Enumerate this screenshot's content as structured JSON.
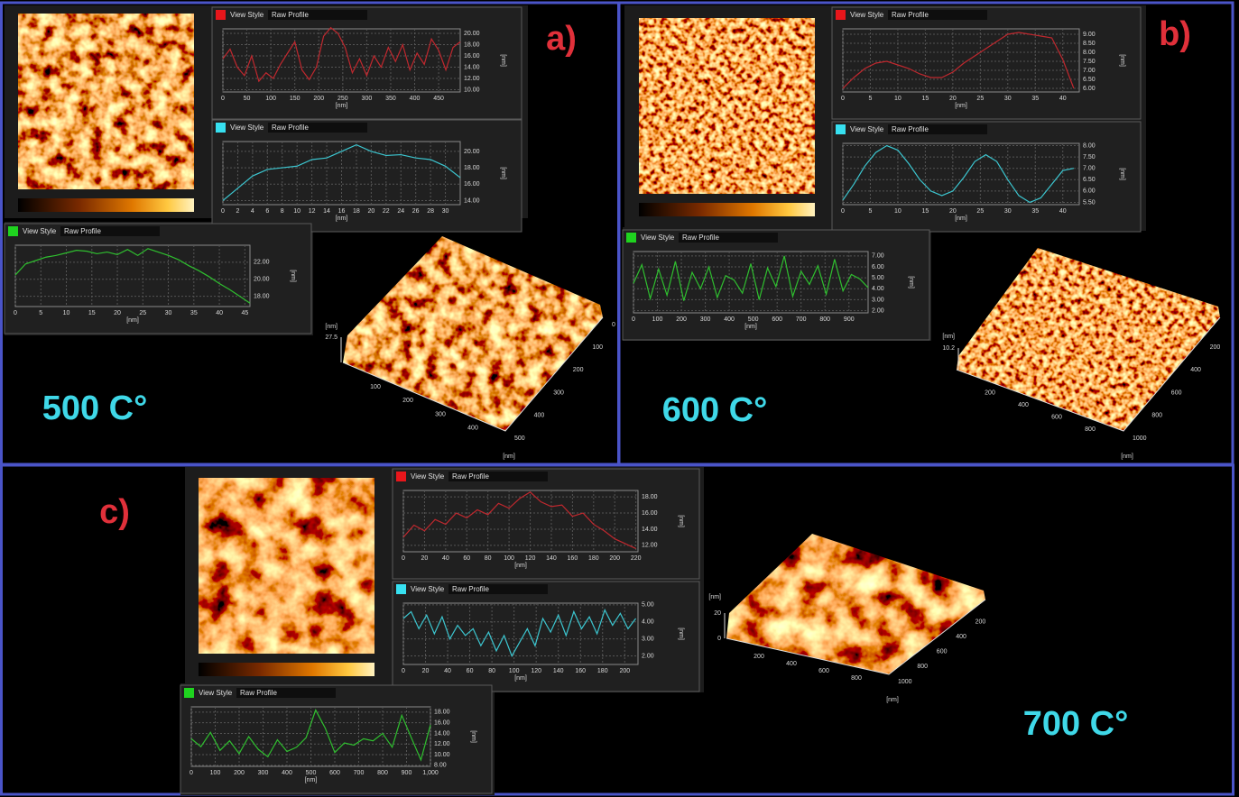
{
  "panels": [
    {
      "label": "a)",
      "temperature": "500 C°",
      "profiles": [
        {
          "header_title": "View Style",
          "header_mode": "Raw Profile",
          "color": "#e8161b",
          "line_color": "#c0282e",
          "x": [
            0,
            15,
            30,
            45,
            60,
            75,
            90,
            105,
            120,
            135,
            150,
            165,
            180,
            195,
            210,
            225,
            240,
            255,
            270,
            285,
            300,
            315,
            330,
            345,
            360,
            375,
            390,
            405,
            420,
            435,
            450,
            465,
            480,
            495
          ],
          "values": [
            15.5,
            17.2,
            14.0,
            12.5,
            16.0,
            11.5,
            13.0,
            12.0,
            14.5,
            16.5,
            18.5,
            13.5,
            11.8,
            14.0,
            19.5,
            21.0,
            20.0,
            17.5,
            13.0,
            15.5,
            12.5,
            16.0,
            14.0,
            17.5,
            15.0,
            18.0,
            13.5,
            16.5,
            14.5,
            19.0,
            17.0,
            13.5,
            17.5,
            18.5
          ],
          "xlim": [
            0,
            495
          ],
          "ylim": [
            9.6,
            20.8
          ],
          "xticks": [
            0,
            50,
            100,
            150,
            200,
            250,
            300,
            350,
            400,
            450
          ],
          "yticks": [
            {
              "value": 10,
              "label": "10.00"
            },
            {
              "value": 12,
              "label": "12.00"
            },
            {
              "value": 14,
              "label": "14.00"
            },
            {
              "value": 16,
              "label": "16.00"
            },
            {
              "value": 18,
              "label": "18.00"
            },
            {
              "value": 20,
              "label": "20.00"
            }
          ],
          "x_unit": "[nm]",
          "y_unit": "[nm]"
        },
        {
          "header_title": "View Style",
          "header_mode": "Raw Profile",
          "color": "#37e0f0",
          "line_color": "#3cc6d0",
          "x": [
            0,
            2,
            4,
            6,
            8,
            10,
            12,
            14,
            16,
            18,
            20,
            22,
            24,
            26,
            28,
            30,
            32
          ],
          "values": [
            14.0,
            15.5,
            17.0,
            17.8,
            18.0,
            18.2,
            19.0,
            19.2,
            20.0,
            20.8,
            20.0,
            19.5,
            19.6,
            19.2,
            19.0,
            18.2,
            16.8
          ],
          "xlim": [
            0,
            32
          ],
          "ylim": [
            13.5,
            21.2
          ],
          "xticks": [
            0,
            2,
            4,
            6,
            8,
            10,
            12,
            14,
            16,
            18,
            20,
            22,
            24,
            26,
            28,
            30
          ],
          "yticks": [
            {
              "value": 14,
              "label": "14.00"
            },
            {
              "value": 16,
              "label": "16.00"
            },
            {
              "value": 18,
              "label": "18.00"
            },
            {
              "value": 20,
              "label": "20.00"
            }
          ],
          "x_unit": "[nm]",
          "y_unit": "[nm]"
        },
        {
          "header_title": "View Style",
          "header_mode": "Raw Profile",
          "color": "#1fd31f",
          "line_color": "#2fbf2f",
          "x": [
            0,
            2,
            4,
            6,
            8,
            10,
            12,
            14,
            16,
            18,
            20,
            22,
            24,
            26,
            28,
            30,
            32,
            34,
            36,
            38,
            40,
            42,
            44,
            46
          ],
          "values": [
            20.5,
            21.8,
            22.2,
            22.6,
            22.8,
            23.1,
            23.4,
            23.3,
            23.0,
            23.2,
            22.9,
            23.5,
            22.8,
            23.6,
            23.2,
            22.8,
            22.3,
            21.6,
            21.0,
            20.3,
            19.5,
            18.8,
            18.0,
            17.2
          ],
          "xlim": [
            0,
            46
          ],
          "ylim": [
            16.8,
            24
          ],
          "xticks": [
            0,
            5,
            10,
            15,
            20,
            25,
            30,
            35,
            40,
            45
          ],
          "yticks": [
            {
              "value": 18,
              "label": "18.00"
            },
            {
              "value": 20,
              "label": "20.00"
            },
            {
              "value": 22,
              "label": "22.00"
            }
          ],
          "x_unit": "[nm]",
          "y_unit": "[nm]"
        }
      ],
      "surface": {
        "z_unit": "[nm]",
        "z_ticks": [
          27.5
        ],
        "x_ticks": [
          100,
          200,
          300,
          400
        ],
        "y_ticks": [
          0,
          100,
          200,
          300,
          400,
          500
        ],
        "y_unit": "[nm]"
      }
    },
    {
      "label": "b)",
      "temperature": "600 C°",
      "profiles": [
        {
          "header_title": "View Style",
          "header_mode": "Raw Profile",
          "color": "#e8161b",
          "line_color": "#c0282e",
          "x": [
            0,
            2,
            4,
            6,
            8,
            10,
            12,
            14,
            16,
            18,
            20,
            22,
            24,
            26,
            28,
            30,
            32,
            34,
            36,
            38,
            40,
            42
          ],
          "values": [
            6.0,
            6.6,
            7.1,
            7.4,
            7.5,
            7.3,
            7.1,
            6.8,
            6.6,
            6.6,
            6.9,
            7.4,
            7.8,
            8.2,
            8.6,
            9.0,
            9.1,
            9.0,
            8.9,
            8.8,
            7.6,
            6.0
          ],
          "xlim": [
            0,
            43
          ],
          "ylim": [
            5.8,
            9.3
          ],
          "xticks": [
            0,
            5,
            10,
            15,
            20,
            25,
            30,
            35,
            40
          ],
          "yticks": [
            {
              "value": 6,
              "label": "6.00"
            },
            {
              "value": 6.5,
              "label": "6.50"
            },
            {
              "value": 7,
              "label": "7.00"
            },
            {
              "value": 7.5,
              "label": "7.50"
            },
            {
              "value": 8,
              "label": "8.00"
            },
            {
              "value": 8.5,
              "label": "8.50"
            },
            {
              "value": 9,
              "label": "9.00"
            }
          ],
          "x_unit": "[nm]",
          "y_unit": "[nm]"
        },
        {
          "header_title": "View Style",
          "header_mode": "Raw Profile",
          "color": "#37e0f0",
          "line_color": "#3cc6d0",
          "x": [
            0,
            2,
            4,
            6,
            8,
            10,
            12,
            14,
            16,
            18,
            20,
            22,
            24,
            26,
            28,
            30,
            32,
            34,
            36,
            38,
            40,
            42
          ],
          "values": [
            5.6,
            6.3,
            7.1,
            7.7,
            8.0,
            7.8,
            7.2,
            6.5,
            6.0,
            5.8,
            6.0,
            6.6,
            7.3,
            7.6,
            7.3,
            6.5,
            5.8,
            5.5,
            5.7,
            6.3,
            6.9,
            7.0
          ],
          "xlim": [
            0,
            43
          ],
          "ylim": [
            5.4,
            8.1
          ],
          "xticks": [
            0,
            5,
            10,
            15,
            20,
            25,
            30,
            35,
            40
          ],
          "yticks": [
            {
              "value": 5.5,
              "label": "5.50"
            },
            {
              "value": 6,
              "label": "6.00"
            },
            {
              "value": 6.5,
              "label": "6.50"
            },
            {
              "value": 7,
              "label": "7.00"
            },
            {
              "value": 7.5,
              "label": "7.50"
            },
            {
              "value": 8,
              "label": "8.00"
            }
          ],
          "x_unit": "[nm]",
          "y_unit": "[nm]"
        },
        {
          "header_title": "View Style",
          "header_mode": "Raw Profile",
          "color": "#1fd31f",
          "line_color": "#2fbf2f",
          "x": [
            0,
            35,
            70,
            105,
            140,
            175,
            210,
            245,
            280,
            315,
            350,
            385,
            420,
            455,
            490,
            525,
            560,
            595,
            630,
            665,
            700,
            735,
            770,
            805,
            840,
            875,
            910,
            945,
            980
          ],
          "values": [
            4.5,
            6.2,
            3.1,
            5.8,
            3.4,
            6.5,
            2.9,
            5.5,
            4.0,
            6.0,
            3.2,
            5.2,
            4.8,
            3.6,
            6.3,
            3.0,
            5.9,
            4.2,
            7.0,
            3.3,
            5.6,
            4.4,
            6.1,
            3.5,
            6.7,
            3.8,
            5.3,
            4.9,
            4.1
          ],
          "xlim": [
            0,
            980
          ],
          "ylim": [
            1.8,
            7.4
          ],
          "xticks": [
            0,
            100,
            200,
            300,
            400,
            500,
            600,
            700,
            800,
            900
          ],
          "yticks": [
            {
              "value": 2,
              "label": "2.00"
            },
            {
              "value": 3,
              "label": "3.00"
            },
            {
              "value": 4,
              "label": "4.00"
            },
            {
              "value": 5,
              "label": "5.00"
            },
            {
              "value": 6,
              "label": "6.00"
            },
            {
              "value": 7,
              "label": "7.00"
            }
          ],
          "x_unit": "[nm]",
          "y_unit": "[nm]"
        }
      ],
      "surface": {
        "z_unit": "[nm]",
        "z_ticks": [
          10.2
        ],
        "x_ticks": [
          200,
          400,
          600,
          800
        ],
        "y_ticks": [
          200,
          400,
          600,
          800,
          1000
        ],
        "y_unit": "[nm]"
      }
    },
    {
      "label": "c)",
      "temperature": "700 C°",
      "profiles": [
        {
          "header_title": "View Style",
          "header_mode": "Raw Profile",
          "color": "#e8161b",
          "line_color": "#c0282e",
          "x": [
            0,
            10,
            20,
            30,
            40,
            50,
            60,
            70,
            80,
            90,
            100,
            110,
            120,
            130,
            140,
            150,
            160,
            170,
            180,
            190,
            200,
            210,
            220
          ],
          "values": [
            13.0,
            14.5,
            13.8,
            15.2,
            14.6,
            16.0,
            15.4,
            16.4,
            15.8,
            17.2,
            16.6,
            17.8,
            18.6,
            17.4,
            16.8,
            17.0,
            15.6,
            16.0,
            14.6,
            13.8,
            12.8,
            12.2,
            11.6
          ],
          "xlim": [
            0,
            222
          ],
          "ylim": [
            11.2,
            18.8
          ],
          "xticks": [
            0,
            20,
            40,
            60,
            80,
            100,
            120,
            140,
            160,
            180,
            200,
            220
          ],
          "yticks": [
            {
              "value": 12,
              "label": "12.00"
            },
            {
              "value": 14,
              "label": "14.00"
            },
            {
              "value": 16,
              "label": "16.00"
            },
            {
              "value": 18,
              "label": "18.00"
            }
          ],
          "x_unit": "[nm]",
          "y_unit": "[nm]"
        },
        {
          "header_title": "View Style",
          "header_mode": "Raw Profile",
          "color": "#37e0f0",
          "line_color": "#3cc6d0",
          "x": [
            0,
            7,
            14,
            21,
            28,
            35,
            42,
            49,
            56,
            63,
            70,
            77,
            84,
            91,
            98,
            105,
            112,
            119,
            126,
            133,
            140,
            147,
            154,
            161,
            168,
            175,
            182,
            189,
            196,
            203,
            210
          ],
          "values": [
            4.2,
            4.6,
            3.6,
            4.4,
            3.3,
            4.3,
            3.0,
            3.8,
            3.2,
            3.6,
            2.6,
            3.4,
            2.3,
            3.2,
            2.0,
            2.8,
            3.6,
            2.6,
            4.2,
            3.4,
            4.4,
            3.2,
            4.6,
            3.6,
            4.3,
            3.3,
            4.7,
            3.8,
            4.5,
            3.6,
            4.2
          ],
          "xlim": [
            0,
            212
          ],
          "ylim": [
            1.5,
            5.1
          ],
          "xticks": [
            0,
            20,
            40,
            60,
            80,
            100,
            120,
            140,
            160,
            180,
            200
          ],
          "yticks": [
            {
              "value": 2,
              "label": "2.00"
            },
            {
              "value": 3,
              "label": "3.00"
            },
            {
              "value": 4,
              "label": "4.00"
            },
            {
              "value": 5,
              "label": "5.00"
            }
          ],
          "x_unit": "[nm]",
          "y_unit": "[nm]"
        },
        {
          "header_title": "View Style",
          "header_mode": "Raw Profile",
          "color": "#1fd31f",
          "line_color": "#2fbf2f",
          "x": [
            0,
            40,
            80,
            120,
            160,
            200,
            240,
            280,
            320,
            360,
            400,
            440,
            480,
            520,
            560,
            600,
            640,
            680,
            720,
            760,
            800,
            840,
            880,
            920,
            960,
            1000
          ],
          "values": [
            13.0,
            11.5,
            14.2,
            10.8,
            12.6,
            10.2,
            13.4,
            11.0,
            9.6,
            12.8,
            10.6,
            11.4,
            13.2,
            18.4,
            15.0,
            10.4,
            12.2,
            11.8,
            13.0,
            12.6,
            14.0,
            11.4,
            17.4,
            13.2,
            9.0,
            15.6
          ],
          "xlim": [
            0,
            1000
          ],
          "ylim": [
            7.8,
            19
          ],
          "xticks": [
            0,
            100,
            200,
            300,
            400,
            500,
            600,
            700,
            800,
            900,
            {
              "value": 1000,
              "label": "1,000"
            }
          ],
          "yticks": [
            {
              "value": 8,
              "label": "8.00"
            },
            {
              "value": 10,
              "label": "10.00"
            },
            {
              "value": 12,
              "label": "12.00"
            },
            {
              "value": 14,
              "label": "14.00"
            },
            {
              "value": 16,
              "label": "16.00"
            },
            {
              "value": 18,
              "label": "18.00"
            }
          ],
          "x_unit": "[nm]",
          "y_unit": "[nm]"
        }
      ],
      "surface": {
        "z_unit": "[nm]",
        "z_ticks": [
          0,
          20
        ],
        "x_ticks": [
          200,
          400,
          600,
          800
        ],
        "y_ticks": [
          200,
          400,
          600,
          800,
          1000
        ],
        "y_unit": "[nm]"
      }
    }
  ]
}
